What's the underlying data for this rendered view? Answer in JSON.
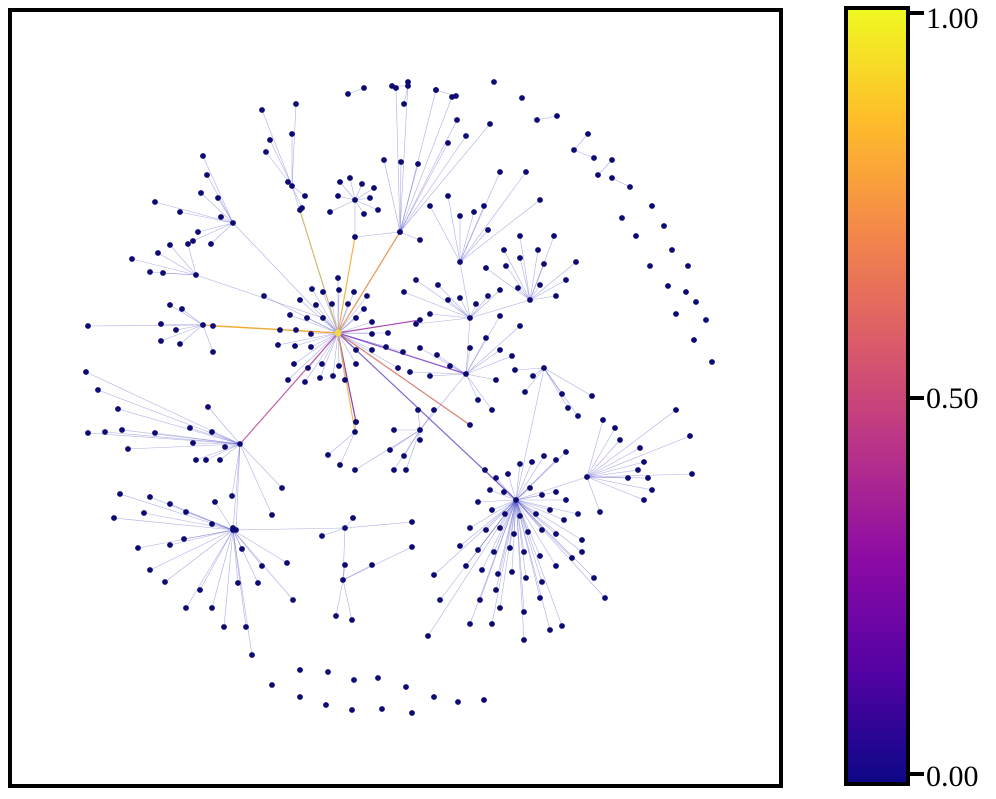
{
  "colorbar": {
    "colors": [
      "#0d0887",
      "#5302a3",
      "#8b0aa5",
      "#b83289",
      "#db5c68",
      "#f48849",
      "#febd2a",
      "#f0f921"
    ],
    "ticks": [
      {
        "value": 1.0,
        "label": "1.00"
      },
      {
        "value": 0.5,
        "label": "0.50"
      },
      {
        "value": 0.0,
        "label": "0.00"
      }
    ]
  },
  "node_color": "#0d0a73",
  "edge_color": "#4b4bc8"
}
